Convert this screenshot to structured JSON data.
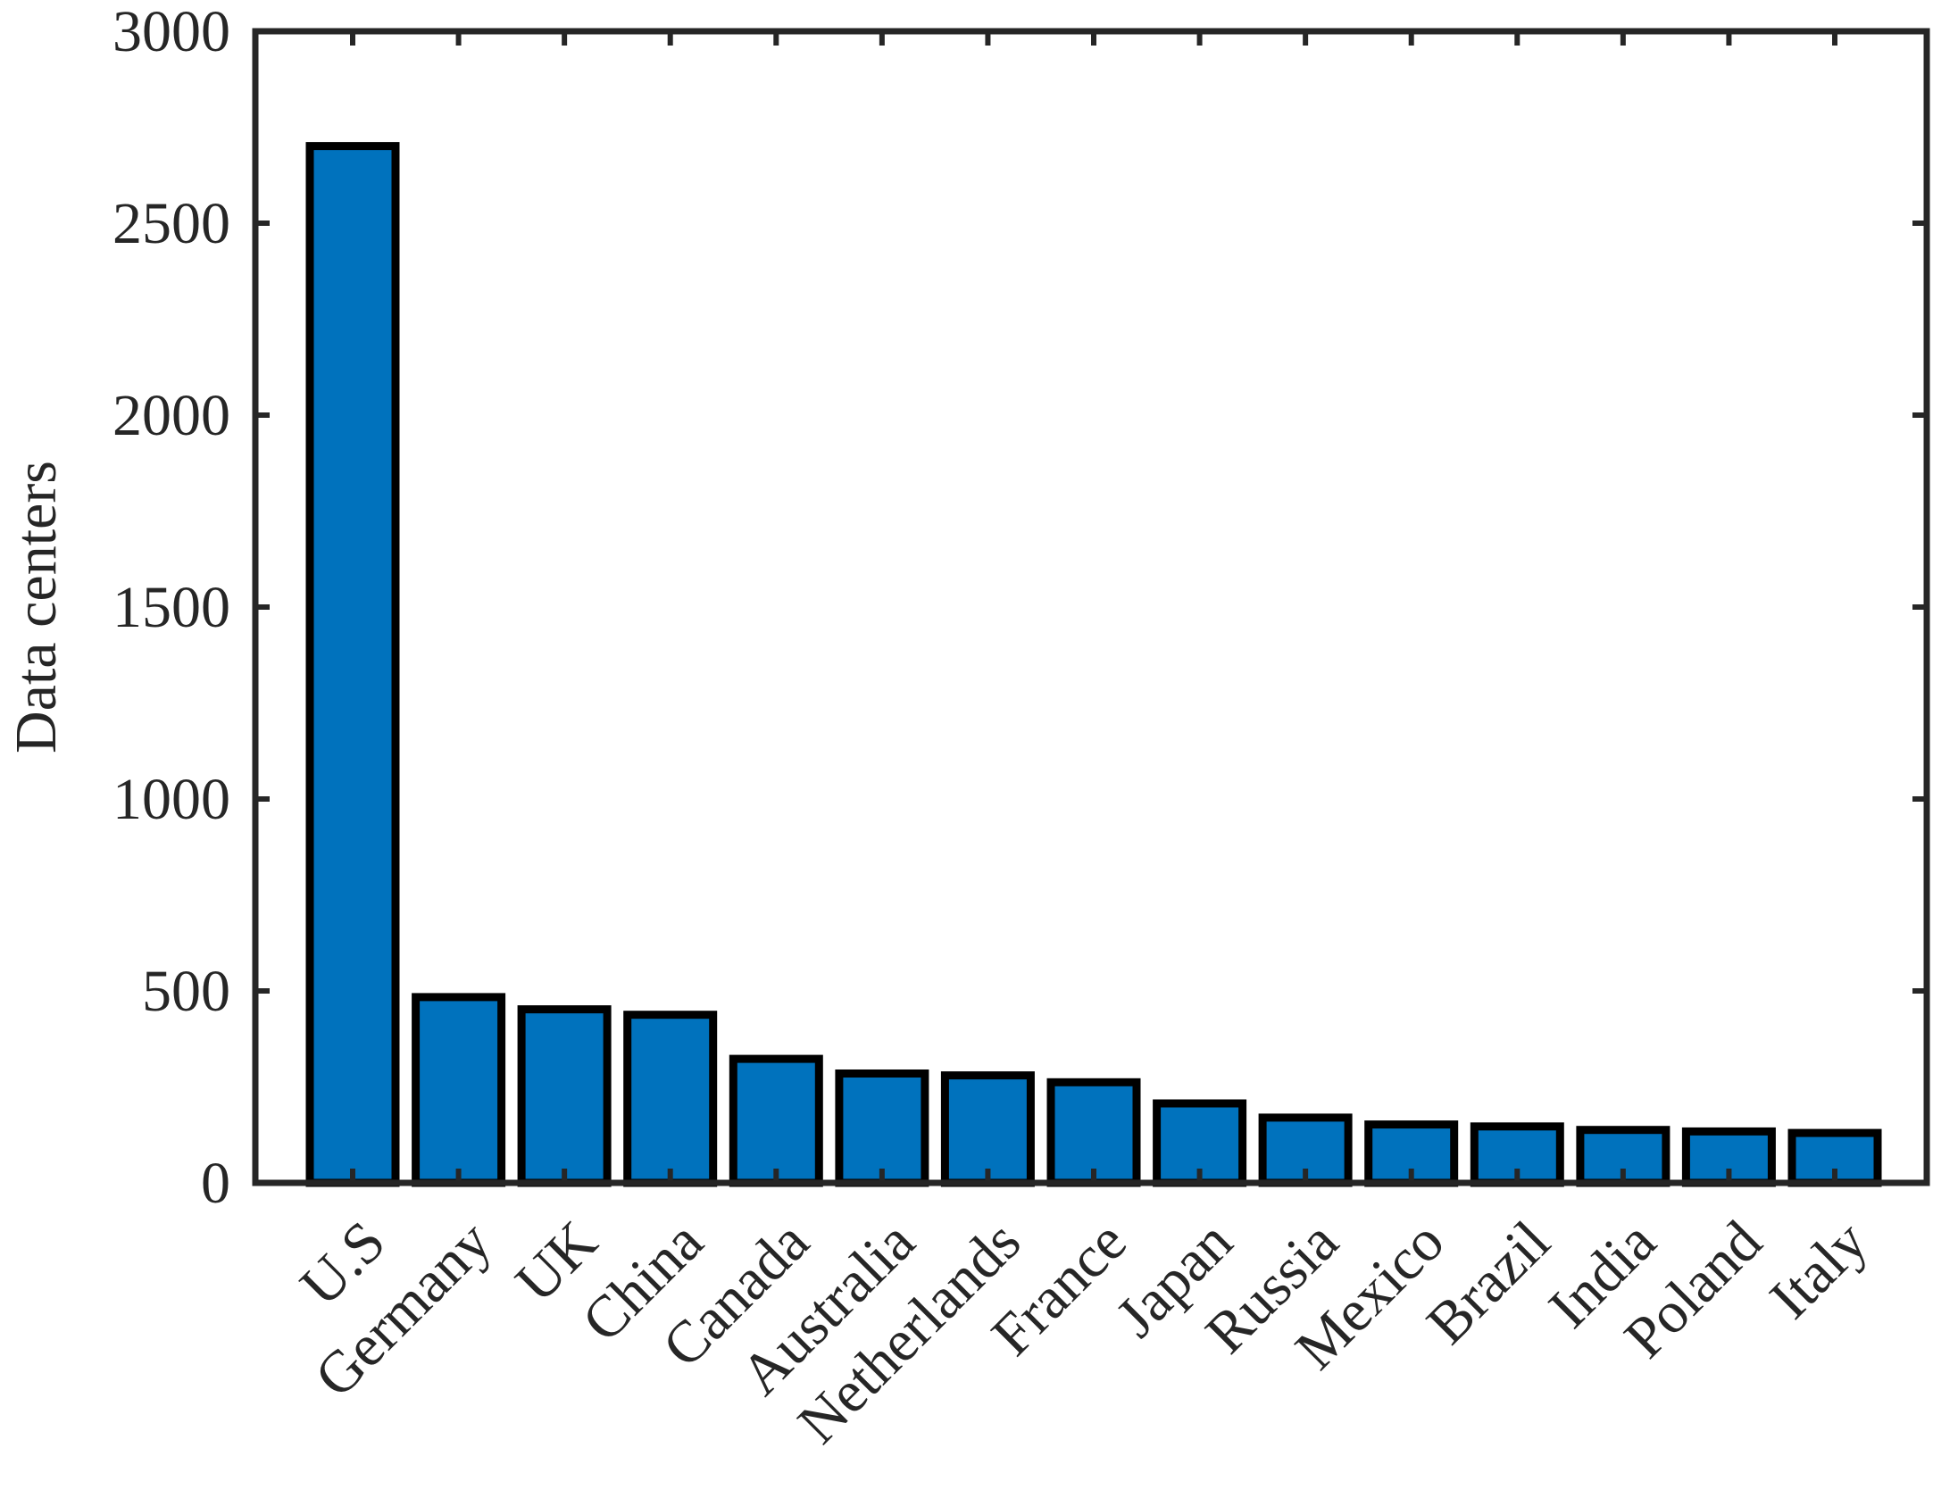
{
  "chart_data": {
    "type": "bar",
    "title": "",
    "xlabel": "",
    "ylabel": "Data centers",
    "ylim": [
      0,
      3000
    ],
    "yticks": [
      0,
      500,
      1000,
      1500,
      2000,
      2500,
      3000
    ],
    "categories": [
      "U.S",
      "Germany",
      "UK",
      "China",
      "Canada",
      "Australia",
      "Netherlands",
      "France",
      "Japan",
      "Russia",
      "Mexico",
      "Brazil",
      "India",
      "Poland",
      "Italy"
    ],
    "values": [
      2701,
      484,
      452,
      438,
      323,
      285,
      280,
      262,
      207,
      170,
      152,
      147,
      138,
      134,
      130
    ],
    "bar_color": "#0072BD",
    "edge_color": "#000000",
    "axis_color": "#262626",
    "grid": false,
    "legend": "none"
  }
}
